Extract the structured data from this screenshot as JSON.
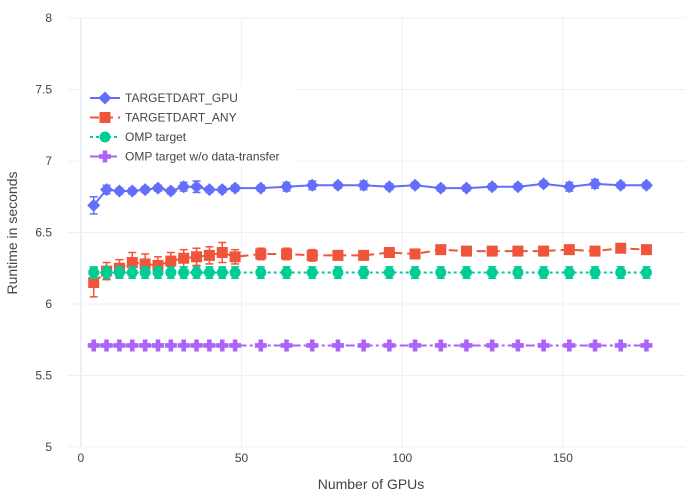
{
  "chart_data": {
    "type": "line",
    "title": "",
    "xlabel": "Number of GPUs",
    "ylabel": "Runtime in seconds",
    "xlim": [
      -4,
      188
    ],
    "ylim": [
      5,
      8
    ],
    "x_ticks": [
      0,
      50,
      100,
      150
    ],
    "y_ticks": [
      5,
      5.5,
      6,
      6.5,
      7,
      7.5,
      8
    ],
    "x_tick_labels": [
      "0",
      "50",
      "100",
      "150"
    ],
    "y_tick_labels": [
      "5",
      "5.5",
      "6",
      "6.5",
      "7",
      "7.5",
      "8"
    ],
    "grid": true,
    "legend_position": "top-left",
    "series": [
      {
        "name": "TARGETDART_GPU",
        "color": "#636efa",
        "marker": "diamond",
        "dash": "solid",
        "x": [
          4,
          8,
          12,
          16,
          20,
          24,
          28,
          32,
          36,
          40,
          44,
          48,
          56,
          64,
          72,
          80,
          88,
          96,
          104,
          112,
          120,
          128,
          136,
          144,
          152,
          160,
          168,
          176
        ],
        "y": [
          6.69,
          6.8,
          6.79,
          6.79,
          6.8,
          6.81,
          6.79,
          6.82,
          6.82,
          6.8,
          6.8,
          6.81,
          6.81,
          6.82,
          6.83,
          6.83,
          6.83,
          6.82,
          6.83,
          6.81,
          6.81,
          6.82,
          6.82,
          6.84,
          6.82,
          6.84,
          6.83,
          6.83
        ],
        "err": [
          0.06,
          0.03,
          0.02,
          0.02,
          0.02,
          0.02,
          0.02,
          0.03,
          0.04,
          0.02,
          0.02,
          0.02,
          0.02,
          0.03,
          0.03,
          0.02,
          0.03,
          0.02,
          0.02,
          0.02,
          0.02,
          0.02,
          0.02,
          0.02,
          0.03,
          0.03,
          0.02,
          0.02
        ]
      },
      {
        "name": "TARGETDART_ANY",
        "color": "#ef553b",
        "marker": "square",
        "dash": "dash",
        "x": [
          4,
          8,
          12,
          16,
          20,
          24,
          28,
          32,
          36,
          40,
          44,
          48,
          56,
          64,
          72,
          80,
          88,
          96,
          104,
          112,
          120,
          128,
          136,
          144,
          152,
          160,
          168,
          176
        ],
        "y": [
          6.15,
          6.23,
          6.25,
          6.29,
          6.28,
          6.27,
          6.3,
          6.32,
          6.33,
          6.34,
          6.36,
          6.33,
          6.35,
          6.35,
          6.34,
          6.34,
          6.34,
          6.36,
          6.35,
          6.38,
          6.37,
          6.37,
          6.37,
          6.37,
          6.38,
          6.37,
          6.39,
          6.38
        ],
        "err": [
          0.1,
          0.06,
          0.06,
          0.07,
          0.07,
          0.06,
          0.06,
          0.06,
          0.06,
          0.06,
          0.07,
          0.05,
          0.04,
          0.04,
          0.04,
          0.03,
          0.03,
          0.02,
          0.03,
          0.03,
          0.02,
          0.03,
          0.03,
          0.02,
          0.02,
          0.02,
          0.02,
          0.02
        ]
      },
      {
        "name": "OMP target",
        "color": "#00cc96",
        "marker": "circle",
        "dash": "dot",
        "x": [
          4,
          8,
          12,
          16,
          20,
          24,
          28,
          32,
          36,
          40,
          44,
          48,
          56,
          64,
          72,
          80,
          88,
          96,
          104,
          112,
          120,
          128,
          136,
          144,
          152,
          160,
          168,
          176
        ],
        "y": [
          6.22,
          6.22,
          6.22,
          6.22,
          6.22,
          6.22,
          6.22,
          6.22,
          6.22,
          6.22,
          6.22,
          6.22,
          6.22,
          6.22,
          6.22,
          6.22,
          6.22,
          6.22,
          6.22,
          6.22,
          6.22,
          6.22,
          6.22,
          6.22,
          6.22,
          6.22,
          6.22,
          6.22
        ],
        "err": [
          0.04,
          0.04,
          0.04,
          0.04,
          0.04,
          0.04,
          0.04,
          0.04,
          0.04,
          0.04,
          0.04,
          0.04,
          0.04,
          0.04,
          0.04,
          0.04,
          0.04,
          0.04,
          0.04,
          0.04,
          0.04,
          0.04,
          0.04,
          0.04,
          0.04,
          0.04,
          0.04,
          0.04
        ]
      },
      {
        "name": "OMP target w/o data-transfer",
        "color": "#ab63fa",
        "marker": "cross",
        "dash": "dashdot",
        "x": [
          4,
          8,
          12,
          16,
          20,
          24,
          28,
          32,
          36,
          40,
          44,
          48,
          56,
          64,
          72,
          80,
          88,
          96,
          104,
          112,
          120,
          128,
          136,
          144,
          152,
          160,
          168,
          176
        ],
        "y": [
          5.71,
          5.71,
          5.71,
          5.71,
          5.71,
          5.71,
          5.71,
          5.71,
          5.71,
          5.71,
          5.71,
          5.71,
          5.71,
          5.71,
          5.71,
          5.71,
          5.71,
          5.71,
          5.71,
          5.71,
          5.71,
          5.71,
          5.71,
          5.71,
          5.71,
          5.71,
          5.71,
          5.71
        ],
        "err": [
          0.01,
          0.01,
          0.01,
          0.01,
          0.01,
          0.01,
          0.01,
          0.01,
          0.01,
          0.01,
          0.01,
          0.01,
          0.01,
          0.01,
          0.01,
          0.01,
          0.01,
          0.01,
          0.01,
          0.01,
          0.01,
          0.01,
          0.01,
          0.01,
          0.01,
          0.01,
          0.01,
          0.01
        ]
      }
    ]
  }
}
